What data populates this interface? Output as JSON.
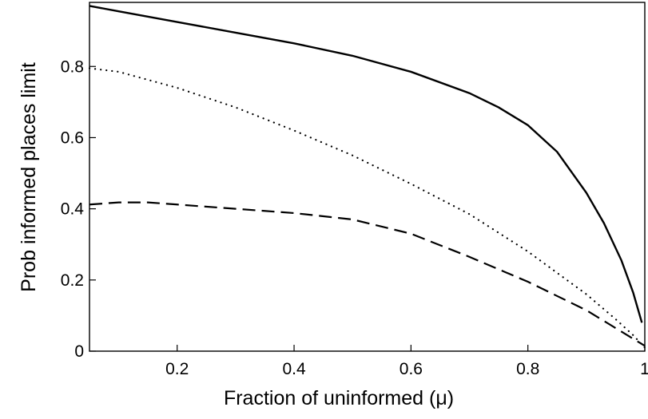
{
  "chart_data": {
    "type": "line",
    "title": "",
    "xlabel": "Fraction of uninformed (μ)",
    "ylabel": "Prob informed places limit",
    "xlim": [
      0.05,
      1.0
    ],
    "ylim": [
      0.0,
      0.98
    ],
    "x_ticks": [
      0.2,
      0.4,
      0.6,
      0.8,
      1.0
    ],
    "x_tick_labels": [
      "0.2",
      "0.4",
      "0.6",
      "0.8",
      "1"
    ],
    "y_ticks": [
      0.0,
      0.2,
      0.4,
      0.6,
      0.8
    ],
    "y_tick_labels": [
      "0",
      "0.2",
      "0.4",
      "0.6",
      "0.8"
    ],
    "grid": false,
    "legend": "none",
    "series": [
      {
        "style": "solid",
        "x": [
          0.05,
          0.1,
          0.2,
          0.3,
          0.4,
          0.5,
          0.6,
          0.7,
          0.75,
          0.8,
          0.85,
          0.9,
          0.93,
          0.96,
          0.98,
          0.995
        ],
        "y": [
          0.97,
          0.955,
          0.925,
          0.895,
          0.865,
          0.83,
          0.785,
          0.725,
          0.685,
          0.635,
          0.56,
          0.445,
          0.36,
          0.255,
          0.165,
          0.08
        ]
      },
      {
        "style": "dotted",
        "x": [
          0.05,
          0.1,
          0.2,
          0.3,
          0.4,
          0.5,
          0.6,
          0.7,
          0.8,
          0.85,
          0.9,
          0.95,
          0.98,
          1.0
        ],
        "y": [
          0.795,
          0.785,
          0.74,
          0.685,
          0.62,
          0.55,
          0.47,
          0.385,
          0.28,
          0.22,
          0.16,
          0.09,
          0.045,
          0.01
        ]
      },
      {
        "style": "dashed",
        "x": [
          0.05,
          0.1,
          0.15,
          0.2,
          0.3,
          0.4,
          0.5,
          0.6,
          0.7,
          0.8,
          0.9,
          0.95,
          1.0
        ],
        "y": [
          0.412,
          0.418,
          0.418,
          0.412,
          0.4,
          0.388,
          0.37,
          0.33,
          0.265,
          0.195,
          0.115,
          0.065,
          0.015
        ]
      }
    ]
  }
}
